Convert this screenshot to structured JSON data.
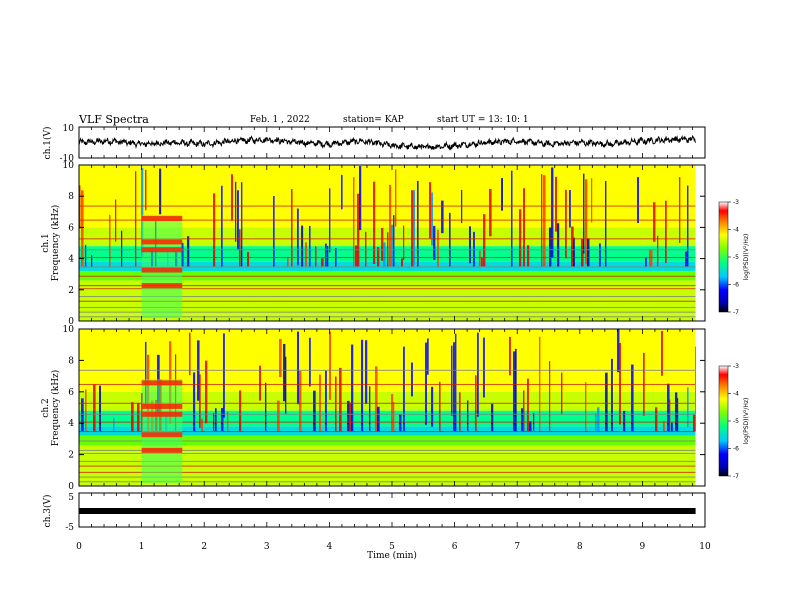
{
  "header": {
    "title": "VLF Spectra",
    "date": "Feb. 1  , 2022",
    "station": "station= KAP",
    "start_time": "start  UT  =   13: 10: 1"
  },
  "chart_data": [
    {
      "type": "line",
      "ylabel": "ch.1(V)",
      "ylim": [
        -10,
        10
      ],
      "xlim": [
        0,
        10
      ],
      "ytick_labels": [
        "10",
        "-10"
      ],
      "description_series": "waveform amplitude",
      "x": [
        0,
        0.5,
        1,
        1.5,
        2,
        2.5,
        3,
        3.5,
        4,
        4.5,
        5,
        5.5,
        6,
        6.5,
        7,
        7.5,
        8,
        8.5,
        9,
        9.5,
        9.85
      ],
      "y": [
        0,
        1,
        -1,
        0,
        -1,
        1,
        2,
        0,
        -1,
        1,
        -2,
        -3,
        -2,
        0,
        1,
        -1,
        0,
        -1,
        1,
        2,
        2
      ]
    },
    {
      "type": "heatmap",
      "ylabel": "ch.1\nFrequency (kHz)",
      "xlim": [
        0,
        10
      ],
      "ylim": [
        0,
        10
      ],
      "yticks": [
        0,
        2,
        4,
        6,
        8,
        10
      ],
      "colorbar": {
        "label": "log(PSD)(V²/Hz)",
        "range": [
          -7,
          -3
        ],
        "ticks": [
          "-3",
          "-4",
          "-5",
          "-6",
          "-7"
        ]
      },
      "data_end_min": 9.85
    },
    {
      "type": "heatmap",
      "ylabel": "ch.2\nFrequency (kHz)",
      "xlim": [
        0,
        10
      ],
      "ylim": [
        0,
        10
      ],
      "yticks": [
        0,
        2,
        4,
        6,
        8,
        10
      ],
      "colorbar": {
        "label": "log(PSD)(V²/Hz)",
        "range": [
          -7,
          -3
        ],
        "ticks": [
          "-3",
          "-4",
          "-5",
          "-6",
          "-7"
        ]
      },
      "data_end_min": 9.85
    },
    {
      "type": "line",
      "ylabel": "ch.3(V)",
      "ylim": [
        -5,
        5
      ],
      "xlim": [
        0,
        10
      ],
      "ytick_labels": [
        "5",
        "-5"
      ],
      "x": [
        0,
        9.85
      ],
      "y": [
        -1,
        -1
      ]
    }
  ],
  "x_axis": {
    "label": "Time  (min)",
    "ticks": [
      "0",
      "1",
      "2",
      "3",
      "4",
      "5",
      "6",
      "7",
      "8",
      "9",
      "10"
    ]
  }
}
